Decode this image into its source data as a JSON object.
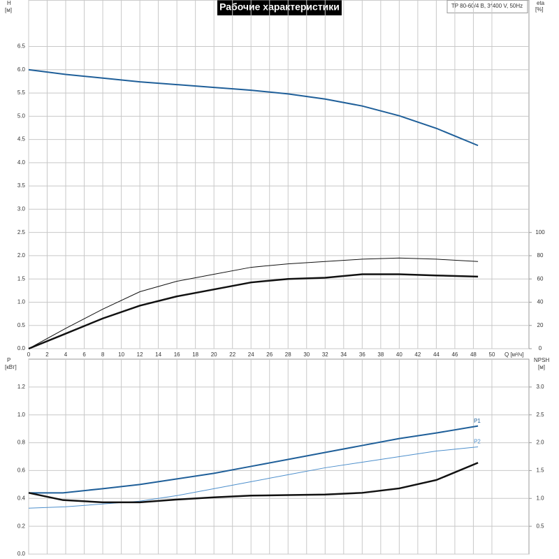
{
  "chart_data": [
    {
      "type": "line",
      "title": "Рабочие характеристики",
      "annotation": "TP 80-60/4 B, 3*400 V, 50Hz",
      "ylabel": "H",
      "ylabel_unit": "[м]",
      "y2label": "eta",
      "y2label_unit": "[%]",
      "xlabel": "Q [м³/ч]",
      "xlim": [
        0,
        54
      ],
      "xticks": [
        0,
        2,
        4,
        6,
        8,
        10,
        12,
        14,
        16,
        18,
        20,
        22,
        24,
        26,
        28,
        30,
        32,
        34,
        36,
        38,
        40,
        42,
        44,
        46,
        48,
        50
      ],
      "ylim": [
        0,
        7.5
      ],
      "yticks": [
        {
          "value": 0,
          "label": "0.0"
        },
        {
          "value": 0.5,
          "label": "0.5"
        },
        {
          "value": 1,
          "label": "1.0"
        },
        {
          "value": 1.5,
          "label": "1.5"
        },
        {
          "value": 2,
          "label": "2.0"
        },
        {
          "value": 2.5,
          "label": "2.5"
        },
        {
          "value": 3,
          "label": "3.0"
        },
        {
          "value": 3.5,
          "label": "3.5"
        },
        {
          "value": 4,
          "label": "4.0"
        },
        {
          "value": 4.5,
          "label": "4.5"
        },
        {
          "value": 5,
          "label": "5.0"
        },
        {
          "value": 5.5,
          "label": "5.5"
        },
        {
          "value": 6,
          "label": "6.0"
        },
        {
          "value": 6.5,
          "label": "6.5"
        }
      ],
      "y2lim": [
        0,
        300
      ],
      "y2ticks": [
        0,
        20,
        40,
        60,
        80,
        100
      ],
      "grid": true,
      "xtick_labels": true,
      "series": [
        {
          "color": "#1f5f99",
          "linewidth": 2,
          "x": [
            0,
            4,
            8,
            12,
            16,
            20,
            24,
            28,
            32,
            36,
            40,
            44,
            48.5
          ],
          "values": [
            6.0,
            5.9,
            5.82,
            5.74,
            5.68,
            5.62,
            5.56,
            5.48,
            5.37,
            5.22,
            5.01,
            4.74,
            4.37
          ]
        },
        {
          "color": "#111111",
          "linewidth": 1,
          "axis": "y2",
          "x": [
            0,
            4,
            8,
            12,
            16,
            20,
            24,
            28,
            32,
            36,
            40,
            44,
            48.5
          ],
          "values": [
            0,
            17.5,
            34,
            49,
            58,
            64,
            70,
            73,
            75,
            77,
            78,
            77,
            75
          ]
        },
        {
          "color": "#111111",
          "linewidth": 2.5,
          "axis": "y2",
          "x": [
            0,
            3.7,
            8,
            12,
            16,
            20,
            24,
            28,
            32,
            36,
            40,
            44,
            48.5
          ],
          "values": [
            0,
            12,
            26,
            37,
            45,
            51,
            57,
            60,
            61,
            64,
            64,
            63,
            62
          ]
        }
      ]
    },
    {
      "type": "line",
      "ylabel": "P",
      "ylabel_unit": "[кВт]",
      "y2label": "NPSH",
      "y2label_unit": "[м]",
      "xlim": [
        0,
        54
      ],
      "xticks": [
        0,
        2,
        4,
        6,
        8,
        10,
        12,
        14,
        16,
        18,
        20,
        22,
        24,
        26,
        28,
        30,
        32,
        34,
        36,
        38,
        40,
        42,
        44,
        46,
        48,
        50
      ],
      "xtick_labels": false,
      "ylim": [
        0,
        1.4
      ],
      "yticks": [
        {
          "value": 0,
          "label": "0.0"
        },
        {
          "value": 0.2,
          "label": "0.2"
        },
        {
          "value": 0.4,
          "label": "0.4"
        },
        {
          "value": 0.6,
          "label": "0.6"
        },
        {
          "value": 0.8,
          "label": "0.8"
        },
        {
          "value": 1,
          "label": "1.0"
        },
        {
          "value": 1.2,
          "label": "1.2"
        }
      ],
      "y2lim": [
        0,
        3.5
      ],
      "y2ticks": [
        {
          "value": 0.5,
          "label": "0.5"
        },
        {
          "value": 1,
          "label": "1.0"
        },
        {
          "value": 1.5,
          "label": "1.5"
        },
        {
          "value": 2,
          "label": "2.0"
        },
        {
          "value": 2.5,
          "label": "2.5"
        },
        {
          "value": 3,
          "label": "3.0"
        }
      ],
      "grid": true,
      "series": [
        {
          "name": "P1",
          "color": "#1f5f99",
          "linewidth": 2,
          "x": [
            0,
            3.7,
            8,
            12,
            16,
            20,
            24,
            28,
            32,
            36,
            40,
            44,
            48.5
          ],
          "values": [
            0.44,
            0.44,
            0.47,
            0.5,
            0.54,
            0.58,
            0.63,
            0.68,
            0.73,
            0.78,
            0.83,
            0.87,
            0.92
          ]
        },
        {
          "name": "P2",
          "color": "#4d8fcc",
          "linewidth": 1,
          "x": [
            0,
            4,
            8,
            12,
            16,
            20,
            24,
            28,
            32,
            36,
            40,
            44,
            48.5
          ],
          "values": [
            0.33,
            0.34,
            0.36,
            0.38,
            0.42,
            0.47,
            0.52,
            0.57,
            0.62,
            0.66,
            0.7,
            0.74,
            0.77
          ]
        },
        {
          "color": "#111111",
          "linewidth": 2.5,
          "axis": "y2",
          "x": [
            0,
            3.7,
            8,
            12,
            16,
            20,
            24,
            28,
            32,
            36,
            40,
            44,
            48.5
          ],
          "values": [
            1.1,
            0.97,
            0.93,
            0.93,
            0.98,
            1.02,
            1.05,
            1.06,
            1.07,
            1.1,
            1.18,
            1.33,
            1.64
          ]
        }
      ]
    }
  ]
}
